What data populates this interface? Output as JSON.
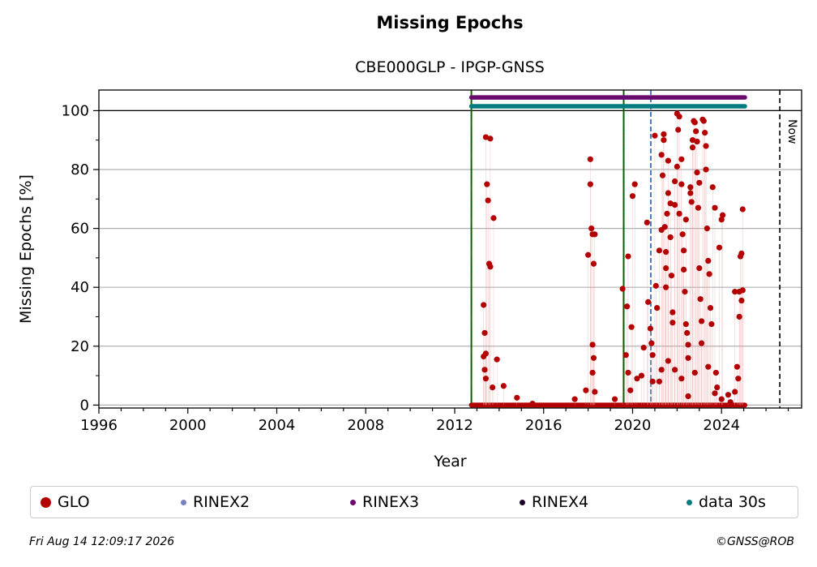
{
  "chart_data": {
    "type": "scatter",
    "title": "Missing Epochs",
    "subtitle": "CBE000GLP - IPGP-GNSS",
    "xlabel": "Year",
    "ylabel": "Missing Epochs [%]",
    "xlim": [
      1996,
      2027.6
    ],
    "ylim": [
      -1,
      107
    ],
    "xticks": [
      "1996",
      "2000",
      "2004",
      "2008",
      "2012",
      "2016",
      "2020",
      "2024"
    ],
    "yticks": [
      "0",
      "20",
      "40",
      "60",
      "80",
      "100"
    ],
    "grid": "horizontal",
    "now_label": "Now",
    "now_x": 2026.62,
    "reference_line_y": 100,
    "vertical_lines": [
      {
        "x": 2012.75,
        "color": "#006400",
        "style": "solid+dotted-red"
      },
      {
        "x": 2019.6,
        "color": "#006400",
        "style": "solid+dotted-red"
      },
      {
        "x": 2020.82,
        "color": "#1f5fa8",
        "style": "dashed"
      }
    ],
    "bands": [
      {
        "name": "RINEX3",
        "y": 104.5,
        "x_start": 2012.75,
        "x_end": 2025.05,
        "color": "#6a0a6e"
      },
      {
        "name": "data 30s",
        "y": 101.5,
        "x_start": 2012.75,
        "x_end": 2025.05,
        "color": "#007b7f"
      }
    ],
    "series": [
      {
        "name": "GLO",
        "color": "#b30000",
        "points": [
          [
            2013.3,
            34
          ],
          [
            2013.35,
            24.5
          ],
          [
            2013.4,
            91
          ],
          [
            2013.45,
            75
          ],
          [
            2013.5,
            69.5
          ],
          [
            2013.55,
            48
          ],
          [
            2013.6,
            47
          ],
          [
            2013.6,
            90.5
          ],
          [
            2013.75,
            63.5
          ],
          [
            2013.4,
            17.5
          ],
          [
            2013.3,
            16.5
          ],
          [
            2013.35,
            12
          ],
          [
            2013.4,
            9
          ],
          [
            2013.7,
            6
          ],
          [
            2013.9,
            15.5
          ],
          [
            2014.2,
            6.5
          ],
          [
            2014.8,
            2.5
          ],
          [
            2015.5,
            0.5
          ],
          [
            2017.4,
            2
          ],
          [
            2017.9,
            5
          ],
          [
            2018.0,
            51
          ],
          [
            2018.1,
            83.5
          ],
          [
            2018.1,
            75
          ],
          [
            2018.15,
            60
          ],
          [
            2018.2,
            58
          ],
          [
            2018.25,
            48
          ],
          [
            2018.2,
            20.5
          ],
          [
            2018.25,
            16
          ],
          [
            2018.2,
            11
          ],
          [
            2018.3,
            4.5
          ],
          [
            2018.3,
            58
          ],
          [
            2019.2,
            2
          ],
          [
            2019.55,
            39.5
          ],
          [
            2019.75,
            33.5
          ],
          [
            2019.8,
            50.5
          ],
          [
            2019.95,
            26.5
          ],
          [
            2020.0,
            71
          ],
          [
            2020.1,
            75
          ],
          [
            2019.7,
            17
          ],
          [
            2019.8,
            11
          ],
          [
            2020.2,
            9
          ],
          [
            2020.5,
            19.5
          ],
          [
            2020.65,
            62
          ],
          [
            2020.7,
            35
          ],
          [
            2020.8,
            26
          ],
          [
            2020.85,
            21
          ],
          [
            2020.9,
            17
          ],
          [
            2021.0,
            91.5
          ],
          [
            2021.05,
            40.5
          ],
          [
            2021.1,
            33
          ],
          [
            2021.2,
            52.5
          ],
          [
            2021.3,
            59.5
          ],
          [
            2021.3,
            85
          ],
          [
            2021.35,
            78
          ],
          [
            2021.4,
            90
          ],
          [
            2021.4,
            92
          ],
          [
            2021.45,
            60.5
          ],
          [
            2021.5,
            52
          ],
          [
            2021.5,
            46.5
          ],
          [
            2021.5,
            40
          ],
          [
            2021.55,
            65
          ],
          [
            2021.6,
            72
          ],
          [
            2021.6,
            83
          ],
          [
            2021.7,
            68.5
          ],
          [
            2021.7,
            57
          ],
          [
            2021.75,
            44
          ],
          [
            2021.8,
            31.5
          ],
          [
            2021.8,
            28
          ],
          [
            2021.9,
            76
          ],
          [
            2021.9,
            68
          ],
          [
            2022.0,
            81
          ],
          [
            2022.0,
            99
          ],
          [
            2022.05,
            93.5
          ],
          [
            2022.1,
            65
          ],
          [
            2022.1,
            98
          ],
          [
            2022.2,
            75
          ],
          [
            2022.2,
            83.5
          ],
          [
            2022.25,
            58
          ],
          [
            2022.3,
            52.5
          ],
          [
            2022.3,
            46
          ],
          [
            2022.35,
            38.5
          ],
          [
            2022.4,
            63
          ],
          [
            2022.4,
            27.5
          ],
          [
            2022.45,
            24.5
          ],
          [
            2022.5,
            20.5
          ],
          [
            2022.5,
            16
          ],
          [
            2022.6,
            74
          ],
          [
            2022.6,
            72
          ],
          [
            2022.65,
            69
          ],
          [
            2022.7,
            87.5
          ],
          [
            2022.7,
            90
          ],
          [
            2022.75,
            96.5
          ],
          [
            2022.8,
            96
          ],
          [
            2022.85,
            93
          ],
          [
            2022.9,
            89.5
          ],
          [
            2022.9,
            79
          ],
          [
            2022.95,
            67
          ],
          [
            2023.0,
            75.5
          ],
          [
            2023.0,
            46.5
          ],
          [
            2023.05,
            36
          ],
          [
            2023.1,
            28.5
          ],
          [
            2023.1,
            21
          ],
          [
            2023.15,
            97
          ],
          [
            2023.2,
            96.5
          ],
          [
            2023.25,
            92.5
          ],
          [
            2023.3,
            88
          ],
          [
            2023.3,
            80
          ],
          [
            2023.35,
            60
          ],
          [
            2023.4,
            49
          ],
          [
            2023.45,
            44.5
          ],
          [
            2023.5,
            33
          ],
          [
            2023.55,
            27.5
          ],
          [
            2023.6,
            74
          ],
          [
            2023.7,
            67
          ],
          [
            2023.75,
            11
          ],
          [
            2023.8,
            6
          ],
          [
            2023.9,
            53.5
          ],
          [
            2024.0,
            63
          ],
          [
            2024.05,
            64.5
          ],
          [
            2024.3,
            3.5
          ],
          [
            2024.6,
            38.5
          ],
          [
            2024.7,
            13
          ],
          [
            2024.75,
            9
          ],
          [
            2024.8,
            38.5
          ],
          [
            2024.8,
            30
          ],
          [
            2024.85,
            50.5
          ],
          [
            2024.9,
            51.5
          ],
          [
            2024.9,
            35.5
          ],
          [
            2024.95,
            66.5
          ],
          [
            2024.95,
            39
          ],
          [
            2021.3,
            12
          ],
          [
            2021.2,
            8
          ],
          [
            2021.6,
            15
          ],
          [
            2021.9,
            12
          ],
          [
            2022.2,
            9
          ],
          [
            2022.5,
            3
          ],
          [
            2022.8,
            11
          ],
          [
            2023.4,
            13
          ],
          [
            2023.7,
            4
          ],
          [
            2024.0,
            2
          ],
          [
            2024.4,
            1
          ],
          [
            2024.6,
            4.5
          ],
          [
            2020.9,
            8
          ],
          [
            2020.4,
            10
          ],
          [
            2019.9,
            5
          ]
        ]
      },
      {
        "name": "RINEX2",
        "color": "#7b7fc4",
        "points": []
      },
      {
        "name": "RINEX3",
        "color": "#6a0a6e",
        "points": []
      },
      {
        "name": "RINEX4",
        "color": "#1a0027",
        "points": []
      },
      {
        "name": "data 30s",
        "color": "#007b7f",
        "points": []
      }
    ]
  },
  "legend": [
    {
      "label": "GLO",
      "color": "#b30000",
      "size": 13
    },
    {
      "label": "RINEX2",
      "color": "#7b7fc4",
      "size": 7
    },
    {
      "label": "RINEX3",
      "color": "#6a0a6e",
      "size": 7
    },
    {
      "label": "RINEX4",
      "color": "#1a0027",
      "size": 7
    },
    {
      "label": "data 30s",
      "color": "#007b7f",
      "size": 7
    }
  ],
  "footer": {
    "timestamp": "Fri Aug 14 12:09:17 2026",
    "credit": "©GNSS@ROB"
  }
}
